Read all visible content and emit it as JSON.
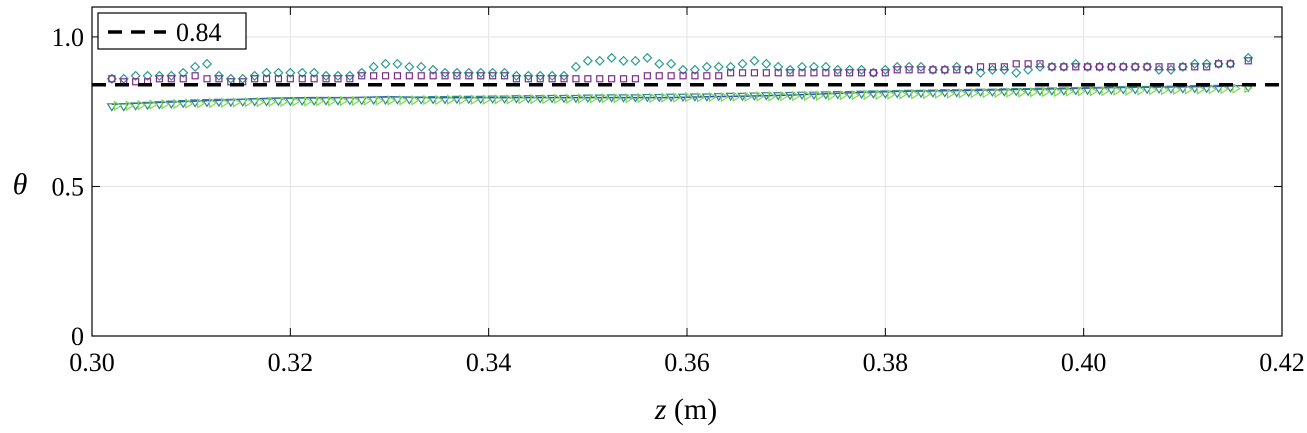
{
  "chart_data": {
    "type": "scatter",
    "xlabel_var": "z",
    "xlabel_unit": " (m)",
    "ylabel": "θ",
    "xlim": [
      0.3,
      0.42
    ],
    "ylim": [
      0,
      1.1
    ],
    "xticks": [
      0.3,
      0.32,
      0.34,
      0.36,
      0.38,
      0.4,
      0.42
    ],
    "xtick_labels": [
      "0.30",
      "0.32",
      "0.34",
      "0.36",
      "0.38",
      "0.40",
      "0.42"
    ],
    "yticks": [
      0,
      0.5,
      1.0
    ],
    "ytick_labels": [
      "0",
      "0.5",
      "1.0"
    ],
    "grid": true,
    "legend": {
      "position": "top-left",
      "entries": [
        {
          "label": "0.84",
          "style": "dashed",
          "color": "#000000"
        }
      ]
    },
    "reference_line": {
      "y": 0.84,
      "label": "0.84",
      "color": "#000000"
    },
    "series": [
      {
        "marker": "diamond",
        "color": "#2a9d8f",
        "x": [
          0.302,
          0.3032,
          0.3044,
          0.3056,
          0.3068,
          0.308,
          0.3092,
          0.3104,
          0.3116,
          0.3128,
          0.314,
          0.3152,
          0.3164,
          0.3176,
          0.3188,
          0.32,
          0.3212,
          0.3224,
          0.3236,
          0.3248,
          0.326,
          0.3272,
          0.3284,
          0.3296,
          0.3308,
          0.332,
          0.3332,
          0.3344,
          0.3356,
          0.3368,
          0.338,
          0.3392,
          0.3404,
          0.3416,
          0.3428,
          0.344,
          0.3452,
          0.3464,
          0.3476,
          0.3488,
          0.35,
          0.3512,
          0.3524,
          0.3536,
          0.3548,
          0.356,
          0.3572,
          0.3584,
          0.3596,
          0.3608,
          0.362,
          0.3632,
          0.3644,
          0.3656,
          0.3668,
          0.368,
          0.3692,
          0.3704,
          0.3716,
          0.3728,
          0.374,
          0.3752,
          0.3764,
          0.3776,
          0.3788,
          0.38,
          0.3812,
          0.3824,
          0.3836,
          0.3848,
          0.386,
          0.3872,
          0.3884,
          0.3896,
          0.3908,
          0.392,
          0.3932,
          0.3944,
          0.3956,
          0.3968,
          0.398,
          0.3992,
          0.4004,
          0.4016,
          0.4028,
          0.404,
          0.4052,
          0.4064,
          0.4076,
          0.4088,
          0.41,
          0.4112,
          0.4124,
          0.4136,
          0.4148,
          0.4166
        ],
        "y": [
          0.86,
          0.86,
          0.87,
          0.87,
          0.87,
          0.87,
          0.88,
          0.9,
          0.91,
          0.87,
          0.86,
          0.86,
          0.87,
          0.88,
          0.88,
          0.88,
          0.88,
          0.88,
          0.87,
          0.87,
          0.87,
          0.88,
          0.9,
          0.91,
          0.91,
          0.9,
          0.9,
          0.89,
          0.88,
          0.88,
          0.88,
          0.88,
          0.88,
          0.88,
          0.87,
          0.87,
          0.87,
          0.87,
          0.87,
          0.9,
          0.92,
          0.92,
          0.93,
          0.92,
          0.92,
          0.93,
          0.91,
          0.91,
          0.89,
          0.89,
          0.9,
          0.9,
          0.9,
          0.91,
          0.92,
          0.91,
          0.9,
          0.89,
          0.9,
          0.9,
          0.9,
          0.89,
          0.89,
          0.89,
          0.88,
          0.89,
          0.9,
          0.9,
          0.9,
          0.89,
          0.89,
          0.9,
          0.89,
          0.88,
          0.89,
          0.89,
          0.88,
          0.89,
          0.9,
          0.9,
          0.9,
          0.91,
          0.9,
          0.9,
          0.9,
          0.9,
          0.9,
          0.9,
          0.89,
          0.89,
          0.9,
          0.91,
          0.91,
          0.91,
          0.91,
          0.93
        ]
      },
      {
        "marker": "square",
        "color": "#7b2d8b",
        "x": [
          0.302,
          0.3032,
          0.3044,
          0.3056,
          0.3068,
          0.308,
          0.3092,
          0.3104,
          0.3116,
          0.3128,
          0.314,
          0.3152,
          0.3164,
          0.3176,
          0.3188,
          0.32,
          0.3212,
          0.3224,
          0.3236,
          0.3248,
          0.326,
          0.3272,
          0.3284,
          0.3296,
          0.3308,
          0.332,
          0.3332,
          0.3344,
          0.3356,
          0.3368,
          0.338,
          0.3392,
          0.3404,
          0.3416,
          0.3428,
          0.344,
          0.3452,
          0.3464,
          0.3476,
          0.3488,
          0.35,
          0.3512,
          0.3524,
          0.3536,
          0.3548,
          0.356,
          0.3572,
          0.3584,
          0.3596,
          0.3608,
          0.362,
          0.3632,
          0.3644,
          0.3656,
          0.3668,
          0.368,
          0.3692,
          0.3704,
          0.3716,
          0.3728,
          0.374,
          0.3752,
          0.3764,
          0.3776,
          0.3788,
          0.38,
          0.3812,
          0.3824,
          0.3836,
          0.3848,
          0.386,
          0.3872,
          0.3884,
          0.3896,
          0.3908,
          0.392,
          0.3932,
          0.3944,
          0.3956,
          0.3968,
          0.398,
          0.3992,
          0.4004,
          0.4016,
          0.4028,
          0.404,
          0.4052,
          0.4064,
          0.4076,
          0.4088,
          0.41,
          0.4112,
          0.4124,
          0.4136,
          0.4148,
          0.4166
        ],
        "y": [
          0.86,
          0.85,
          0.85,
          0.85,
          0.86,
          0.86,
          0.86,
          0.87,
          0.86,
          0.86,
          0.85,
          0.85,
          0.86,
          0.86,
          0.86,
          0.86,
          0.86,
          0.86,
          0.86,
          0.86,
          0.86,
          0.87,
          0.87,
          0.87,
          0.87,
          0.87,
          0.87,
          0.87,
          0.87,
          0.87,
          0.87,
          0.87,
          0.87,
          0.87,
          0.86,
          0.86,
          0.86,
          0.86,
          0.86,
          0.86,
          0.86,
          0.86,
          0.86,
          0.86,
          0.86,
          0.87,
          0.87,
          0.87,
          0.87,
          0.87,
          0.87,
          0.87,
          0.88,
          0.88,
          0.88,
          0.88,
          0.88,
          0.88,
          0.88,
          0.88,
          0.88,
          0.88,
          0.88,
          0.88,
          0.88,
          0.88,
          0.89,
          0.89,
          0.89,
          0.89,
          0.89,
          0.89,
          0.89,
          0.9,
          0.9,
          0.9,
          0.91,
          0.91,
          0.91,
          0.9,
          0.9,
          0.9,
          0.9,
          0.9,
          0.9,
          0.9,
          0.9,
          0.9,
          0.9,
          0.9,
          0.9,
          0.9,
          0.9,
          0.91,
          0.91,
          0.92
        ]
      },
      {
        "marker": "line",
        "color": "#3b4cc0",
        "x": [
          0.302,
          0.306,
          0.31,
          0.314,
          0.318,
          0.322,
          0.326,
          0.33,
          0.334,
          0.338,
          0.342,
          0.346,
          0.35,
          0.354,
          0.358,
          0.362,
          0.366,
          0.37,
          0.374,
          0.378,
          0.382,
          0.386,
          0.39,
          0.394,
          0.398,
          0.402,
          0.406,
          0.41,
          0.414,
          0.4166
        ],
        "y": [
          0.775,
          0.78,
          0.785,
          0.79,
          0.795,
          0.797,
          0.797,
          0.8,
          0.797,
          0.797,
          0.797,
          0.797,
          0.797,
          0.797,
          0.797,
          0.8,
          0.802,
          0.805,
          0.81,
          0.815,
          0.818,
          0.82,
          0.822,
          0.825,
          0.827,
          0.83,
          0.832,
          0.833,
          0.835,
          0.838
        ]
      },
      {
        "marker": "triangle-down",
        "color": "#2d8a8a",
        "x": [
          0.302,
          0.3032,
          0.3044,
          0.3056,
          0.3068,
          0.308,
          0.3092,
          0.3104,
          0.3116,
          0.3128,
          0.314,
          0.3152,
          0.3164,
          0.3176,
          0.3188,
          0.32,
          0.3212,
          0.3224,
          0.3236,
          0.3248,
          0.326,
          0.3272,
          0.3284,
          0.3296,
          0.3308,
          0.332,
          0.3332,
          0.3344,
          0.3356,
          0.3368,
          0.338,
          0.3392,
          0.3404,
          0.3416,
          0.3428,
          0.344,
          0.3452,
          0.3464,
          0.3476,
          0.3488,
          0.35,
          0.3512,
          0.3524,
          0.3536,
          0.3548,
          0.356,
          0.3572,
          0.3584,
          0.3596,
          0.3608,
          0.362,
          0.3632,
          0.3644,
          0.3656,
          0.3668,
          0.368,
          0.3692,
          0.3704,
          0.3716,
          0.3728,
          0.374,
          0.3752,
          0.3764,
          0.3776,
          0.3788,
          0.38,
          0.3812,
          0.3824,
          0.3836,
          0.3848,
          0.386,
          0.3872,
          0.3884,
          0.3896,
          0.3908,
          0.392,
          0.3932,
          0.3944,
          0.3956,
          0.3968,
          0.398,
          0.3992,
          0.4004,
          0.4016,
          0.4028,
          0.404,
          0.4052,
          0.4064,
          0.4076,
          0.4088,
          0.41,
          0.4112,
          0.4124,
          0.4136,
          0.4148,
          0.4166
        ],
        "y": [
          0.765,
          0.765,
          0.768,
          0.77,
          0.772,
          0.774,
          0.776,
          0.778,
          0.779,
          0.78,
          0.78,
          0.781,
          0.782,
          0.782,
          0.783,
          0.783,
          0.784,
          0.784,
          0.785,
          0.785,
          0.786,
          0.786,
          0.787,
          0.787,
          0.788,
          0.788,
          0.788,
          0.789,
          0.789,
          0.79,
          0.79,
          0.79,
          0.791,
          0.791,
          0.792,
          0.792,
          0.792,
          0.793,
          0.793,
          0.793,
          0.794,
          0.794,
          0.795,
          0.795,
          0.795,
          0.796,
          0.796,
          0.797,
          0.797,
          0.798,
          0.798,
          0.799,
          0.8,
          0.8,
          0.801,
          0.802,
          0.802,
          0.803,
          0.804,
          0.804,
          0.805,
          0.806,
          0.806,
          0.807,
          0.808,
          0.808,
          0.809,
          0.81,
          0.81,
          0.811,
          0.812,
          0.812,
          0.813,
          0.814,
          0.814,
          0.815,
          0.816,
          0.816,
          0.817,
          0.818,
          0.818,
          0.819,
          0.82,
          0.82,
          0.821,
          0.822,
          0.822,
          0.823,
          0.824,
          0.824,
          0.825,
          0.826,
          0.826,
          0.827,
          0.828,
          0.829
        ]
      },
      {
        "marker": "triangle-right",
        "color": "#7ed957",
        "x": [
          0.3026,
          0.3038,
          0.305,
          0.3062,
          0.3074,
          0.3086,
          0.3098,
          0.311,
          0.3122,
          0.3134,
          0.3146,
          0.3158,
          0.317,
          0.3182,
          0.3194,
          0.3206,
          0.3218,
          0.323,
          0.3242,
          0.3254,
          0.3266,
          0.3278,
          0.329,
          0.3302,
          0.3314,
          0.3326,
          0.3338,
          0.335,
          0.3362,
          0.3374,
          0.3386,
          0.3398,
          0.341,
          0.3422,
          0.3434,
          0.3446,
          0.3458,
          0.347,
          0.3482,
          0.3494,
          0.3506,
          0.3518,
          0.353,
          0.3542,
          0.3554,
          0.3566,
          0.3578,
          0.359,
          0.3602,
          0.3614,
          0.3626,
          0.3638,
          0.365,
          0.3662,
          0.3674,
          0.3686,
          0.3698,
          0.371,
          0.3722,
          0.3734,
          0.3746,
          0.3758,
          0.377,
          0.3782,
          0.3794,
          0.3806,
          0.3818,
          0.383,
          0.3842,
          0.3854,
          0.3866,
          0.3878,
          0.389,
          0.3902,
          0.3914,
          0.3926,
          0.3938,
          0.395,
          0.3962,
          0.3974,
          0.3986,
          0.3998,
          0.401,
          0.4022,
          0.4034,
          0.4046,
          0.4058,
          0.407,
          0.4082,
          0.4094,
          0.4106,
          0.4118,
          0.413,
          0.4142,
          0.4154,
          0.4166
        ],
        "y": [
          0.77,
          0.77,
          0.772,
          0.774,
          0.775,
          0.776,
          0.777,
          0.778,
          0.779,
          0.78,
          0.781,
          0.782,
          0.782,
          0.783,
          0.783,
          0.784,
          0.784,
          0.785,
          0.785,
          0.786,
          0.786,
          0.787,
          0.787,
          0.788,
          0.788,
          0.788,
          0.789,
          0.789,
          0.79,
          0.79,
          0.79,
          0.79,
          0.791,
          0.791,
          0.792,
          0.792,
          0.792,
          0.793,
          0.793,
          0.794,
          0.794,
          0.795,
          0.795,
          0.795,
          0.796,
          0.796,
          0.797,
          0.797,
          0.798,
          0.798,
          0.799,
          0.799,
          0.8,
          0.8,
          0.801,
          0.801,
          0.802,
          0.802,
          0.803,
          0.803,
          0.804,
          0.805,
          0.805,
          0.806,
          0.806,
          0.807,
          0.808,
          0.808,
          0.809,
          0.81,
          0.81,
          0.811,
          0.812,
          0.812,
          0.813,
          0.814,
          0.814,
          0.815,
          0.816,
          0.816,
          0.817,
          0.818,
          0.818,
          0.819,
          0.82,
          0.82,
          0.821,
          0.822,
          0.822,
          0.823,
          0.824,
          0.824,
          0.825,
          0.826,
          0.827,
          0.829
        ]
      }
    ]
  }
}
